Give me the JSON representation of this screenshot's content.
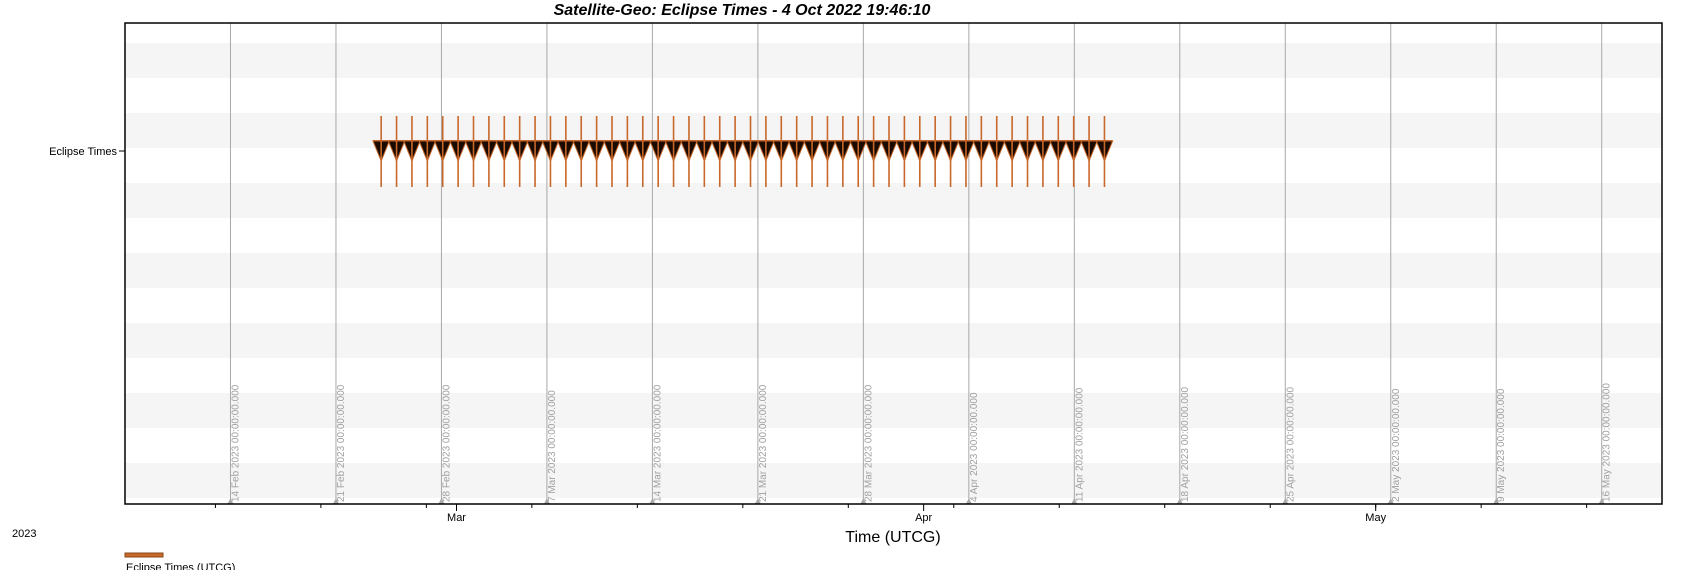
{
  "chart_data": {
    "type": "timeline",
    "title": "Satellite-Geo:  Eclipse Times -  4 Oct 2022 19:46:10",
    "xlabel": "Time (UTCG)",
    "year_label": "2023",
    "xlim": [
      "2023-02-07",
      "2023-05-20"
    ],
    "y_categories": [
      "Eclipse Times"
    ],
    "month_ticks": [
      {
        "label": "Mar",
        "date": "2023-03-01"
      },
      {
        "label": "Apr",
        "date": "2023-04-01"
      },
      {
        "label": "May",
        "date": "2023-05-01"
      }
    ],
    "vertical_markers": [
      {
        "date": "2023-02-14",
        "label": "14 Feb 2023 00:00:00.000"
      },
      {
        "date": "2023-02-21",
        "label": "21 Feb 2023 00:00:00.000"
      },
      {
        "date": "2023-02-28",
        "label": "28 Feb 2023 00:00:00.000"
      },
      {
        "date": "2023-03-07",
        "label": "7 Mar 2023 00:00:00.000"
      },
      {
        "date": "2023-03-14",
        "label": "14 Mar 2023 00:00:00.000"
      },
      {
        "date": "2023-03-21",
        "label": "21 Mar 2023 00:00:00.000"
      },
      {
        "date": "2023-03-28",
        "label": "28 Mar 2023 00:00:00.000"
      },
      {
        "date": "2023-04-04",
        "label": "4 Apr 2023 00:00:00.000"
      },
      {
        "date": "2023-04-11",
        "label": "11 Apr 2023 00:00:00.000"
      },
      {
        "date": "2023-04-18",
        "label": "18 Apr 2023 00:00:00.000"
      },
      {
        "date": "2023-04-25",
        "label": "25 Apr 2023 00:00:00.000"
      },
      {
        "date": "2023-05-02",
        "label": "2 May 2023 00:00:00.000"
      },
      {
        "date": "2023-05-09",
        "label": "9 May 2023 00:00:00.000"
      },
      {
        "date": "2023-05-16",
        "label": "16 May 2023 00:00:00.000"
      }
    ],
    "series": [
      {
        "name": "Eclipse Times (UTCG)",
        "color": "#c8682a",
        "first_event": "2023-02-24",
        "last_event": "2023-04-13",
        "event_count": 48
      }
    ],
    "grid": true
  }
}
